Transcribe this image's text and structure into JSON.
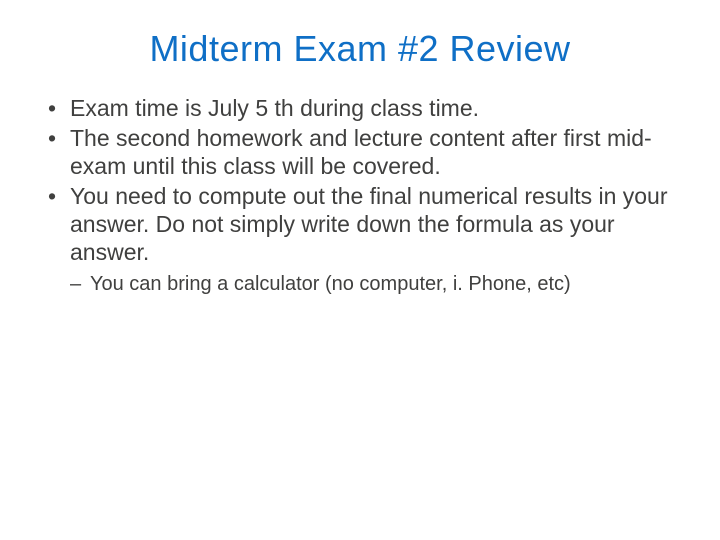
{
  "title": {
    "text": "Midterm Exam #2 Review",
    "color": "#0f6fc6",
    "fontsize": 36
  },
  "body": {
    "color": "#40403f",
    "fontsize_main": 23,
    "fontsize_sub": 20
  },
  "bullets": [
    {
      "text": "Exam time is July 5 th during class time."
    },
    {
      "text": "The second homework and lecture content after first mid-exam until this class will be covered."
    },
    {
      "text": "You need to compute out the final numerical results in your answer. Do not simply write down the formula as your answer."
    }
  ],
  "sub_bullets": [
    {
      "text": "You can bring a calculator (no computer, i. Phone, etc)"
    }
  ],
  "background_color": "#ffffff"
}
